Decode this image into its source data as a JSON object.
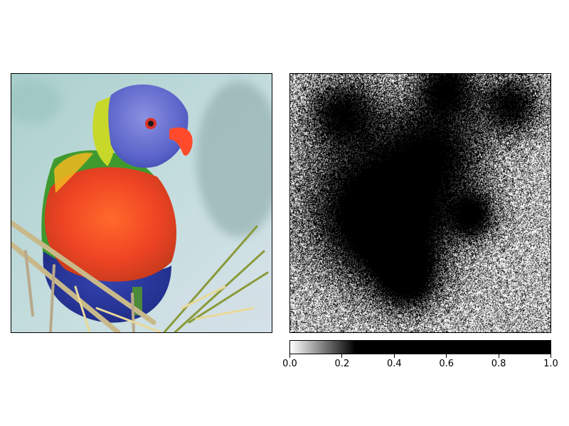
{
  "chart_data": [
    {
      "type": "image",
      "panel": "left",
      "subject": "rainbow lorikeet photograph",
      "axes_visible": false
    },
    {
      "type": "heatmap",
      "panel": "right",
      "colormap": "gray_r",
      "description_level": "high-frequency attribution/saliency map",
      "vmin": 0.0,
      "vmax": 1.0,
      "colorbar": {
        "orientation": "horizontal",
        "ticks": [
          "0.0",
          "0.2",
          "0.4",
          "0.6",
          "0.8",
          "1.0"
        ],
        "tick_values": [
          0.0,
          0.2,
          0.4,
          0.6,
          0.8,
          1.0
        ],
        "saturation_value": 0.25
      }
    }
  ],
  "colors": {
    "background": "#ffffff",
    "axis": "#000000",
    "bird_head": "#5a63c9",
    "bird_neck": "#c8d82a",
    "bird_chest": "#ef4a24",
    "bird_belly": "#2a3a9a",
    "bird_back": "#3f9a2e",
    "beak": "#ff4b2b",
    "sky": "#b5d2d3"
  }
}
